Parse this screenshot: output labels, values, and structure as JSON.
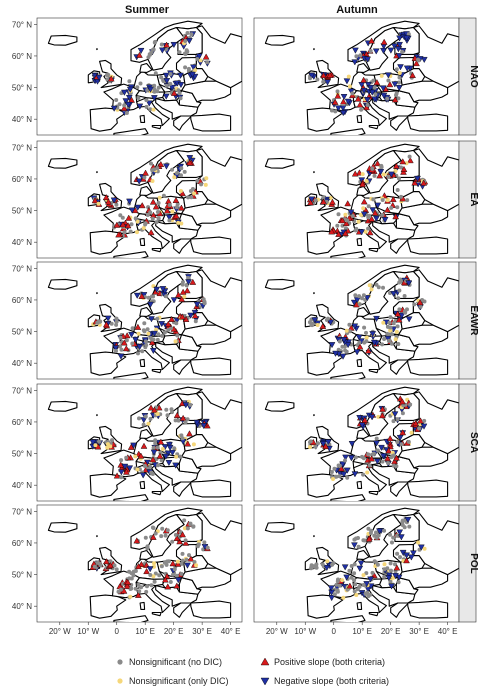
{
  "columns": [
    "Summer",
    "Autumn"
  ],
  "rows": [
    "NAO",
    "EA",
    "EAWR",
    "SCA",
    "POL"
  ],
  "lat_ticks": [
    "70° N",
    "60° N",
    "50° N",
    "40° N"
  ],
  "lon_ticks": [
    "20° W",
    "10° W",
    "0",
    "10° E",
    "20° E",
    "30° E",
    "40° E"
  ],
  "legend": [
    {
      "label": "Nonsignificant (no DIC)",
      "symbol": "circle",
      "color": "#8a8a8a"
    },
    {
      "label": "Positive slope (both criteria)",
      "symbol": "triangle-up",
      "color": "#d7191c"
    },
    {
      "label": "Nonsignificant (only DIC)",
      "symbol": "circle",
      "color": "#f5d77a"
    },
    {
      "label": "Negative slope (both criteria)",
      "symbol": "triangle-down",
      "color": "#1f2fa3"
    }
  ],
  "colors": {
    "land": "#ffffff",
    "border": "#000000",
    "panel_bg": "#ffffff",
    "strip_bg": "#e8e8e8"
  },
  "map_extent": {
    "lon": [
      -28,
      44
    ],
    "lat": [
      35,
      72
    ]
  },
  "point_density": {
    "Summer": {
      "NAO": {
        "grey": 0.5,
        "yellow": 0.05,
        "red": 0.05,
        "blue": 0.4
      },
      "EA": {
        "grey": 0.4,
        "yellow": 0.1,
        "red": 0.35,
        "blue": 0.15
      },
      "EAWR": {
        "grey": 0.45,
        "yellow": 0.05,
        "red": 0.2,
        "blue": 0.3
      },
      "SCA": {
        "grey": 0.45,
        "yellow": 0.15,
        "red": 0.15,
        "blue": 0.25
      },
      "POL": {
        "grey": 0.55,
        "yellow": 0.1,
        "red": 0.25,
        "blue": 0.1
      }
    },
    "Autumn": {
      "NAO": {
        "grey": 0.3,
        "yellow": 0.05,
        "red": 0.25,
        "blue": 0.4
      },
      "EA": {
        "grey": 0.35,
        "yellow": 0.1,
        "red": 0.4,
        "blue": 0.15
      },
      "EAWR": {
        "grey": 0.5,
        "yellow": 0.1,
        "red": 0.1,
        "blue": 0.3
      },
      "SCA": {
        "grey": 0.4,
        "yellow": 0.1,
        "red": 0.25,
        "blue": 0.25
      },
      "POL": {
        "grey": 0.55,
        "yellow": 0.1,
        "red": 0.05,
        "blue": 0.3
      }
    }
  }
}
